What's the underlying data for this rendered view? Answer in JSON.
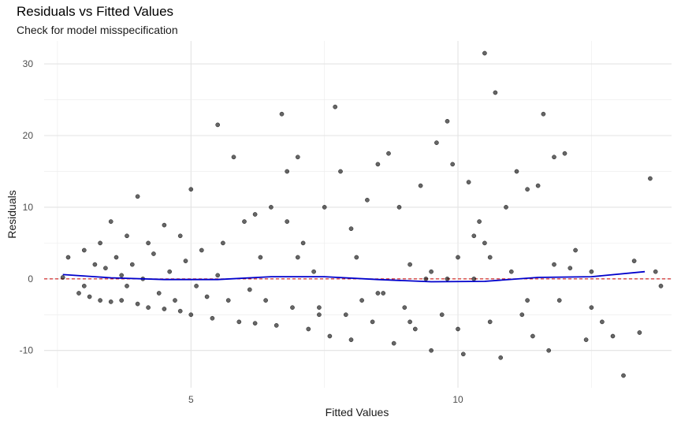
{
  "chart_data": {
    "type": "scatter",
    "title": "Residuals vs Fitted Values",
    "subtitle": "Check for model misspecification",
    "xlabel": "Fitted Values",
    "ylabel": "Residuals",
    "xlim": [
      2.25,
      14.0
    ],
    "ylim": [
      -15.2,
      33.2
    ],
    "x_ticks": [
      5,
      10
    ],
    "y_ticks": [
      -10,
      0,
      10,
      20,
      30
    ],
    "grid": true,
    "reference_line": {
      "y": 0,
      "color": "#cc0000",
      "style": "dashed"
    },
    "smooth_line": {
      "color": "#0000cc",
      "x": [
        2.6,
        3.5,
        4.5,
        5.5,
        6.5,
        7.5,
        8.5,
        9.5,
        10.5,
        11.5,
        12.5,
        13.5
      ],
      "y": [
        0.6,
        0.15,
        -0.1,
        -0.1,
        0.3,
        0.3,
        -0.1,
        -0.4,
        -0.35,
        0.2,
        0.3,
        1.0
      ]
    },
    "point_color": "#000000",
    "point_opacity": 0.6,
    "x": [
      2.6,
      2.7,
      2.9,
      3.0,
      3.0,
      3.1,
      3.2,
      3.3,
      3.3,
      3.4,
      3.5,
      3.5,
      3.6,
      3.7,
      3.7,
      3.8,
      3.8,
      3.9,
      4.0,
      4.0,
      4.1,
      4.2,
      4.2,
      4.3,
      4.4,
      4.5,
      4.5,
      4.6,
      4.7,
      4.8,
      4.8,
      4.9,
      5.0,
      5.0,
      5.1,
      5.2,
      5.3,
      5.4,
      5.5,
      5.6,
      5.7,
      5.8,
      5.9,
      6.0,
      6.1,
      6.2,
      6.3,
      6.4,
      6.5,
      6.6,
      6.7,
      6.8,
      6.9,
      7.0,
      7.1,
      7.2,
      7.3,
      7.4,
      7.5,
      7.6,
      7.7,
      7.8,
      7.9,
      8.0,
      8.1,
      8.2,
      8.3,
      8.4,
      8.5,
      8.6,
      8.7,
      8.8,
      8.9,
      9.0,
      9.1,
      9.2,
      9.3,
      9.4,
      9.5,
      9.6,
      9.7,
      9.8,
      9.9,
      10.0,
      10.1,
      10.2,
      10.3,
      10.4,
      10.5,
      10.6,
      10.7,
      10.8,
      10.9,
      11.0,
      11.1,
      11.2,
      11.3,
      11.4,
      11.5,
      11.6,
      11.7,
      11.8,
      11.9,
      12.0,
      12.2,
      12.4,
      12.5,
      12.7,
      12.9,
      13.1,
      13.3,
      13.4,
      13.6,
      13.7,
      13.8,
      5.5,
      7.4,
      7.0,
      8.0,
      8.5,
      9.5,
      10.0,
      10.5,
      10.6,
      11.8,
      12.5,
      9.8,
      10.3,
      11.3,
      6.8,
      6.2,
      9.1,
      12.1
    ],
    "y": [
      0.2,
      3.0,
      -2.0,
      -1.0,
      4.0,
      -2.5,
      2.0,
      -3.0,
      5.0,
      1.5,
      -3.2,
      8.0,
      3.0,
      -3.0,
      0.5,
      -1.0,
      6.0,
      2.0,
      -3.5,
      11.5,
      0.0,
      -4.0,
      5.0,
      3.5,
      -2.0,
      -4.2,
      7.5,
      1.0,
      -3.0,
      -4.5,
      6.0,
      2.5,
      -5.0,
      12.5,
      -1.0,
      4.0,
      -2.5,
      -5.5,
      21.5,
      5.0,
      -3.0,
      17.0,
      -6.0,
      8.0,
      -1.5,
      -6.2,
      3.0,
      -3.0,
      10.0,
      -6.5,
      23.0,
      15.0,
      -4.0,
      17.0,
      5.0,
      -7.0,
      1.0,
      -4.0,
      10.0,
      -8.0,
      24.0,
      15.0,
      -5.0,
      -8.5,
      3.0,
      -3.0,
      11.0,
      -6.0,
      16.0,
      -2.0,
      17.5,
      -9.0,
      10.0,
      -4.0,
      2.0,
      -7.0,
      13.0,
      0.0,
      -10.0,
      19.0,
      -5.0,
      22.0,
      16.0,
      3.0,
      -10.5,
      13.5,
      0.0,
      8.0,
      31.5,
      -6.0,
      26.0,
      -11.0,
      10.0,
      1.0,
      15.0,
      -5.0,
      12.5,
      -8.0,
      13.0,
      23.0,
      -10.0,
      17.0,
      -3.0,
      17.5,
      4.0,
      -8.5,
      1.0,
      -6.0,
      -8.0,
      -13.5,
      2.5,
      -7.5,
      14.0,
      1.0,
      -1.0,
      0.5,
      -5.0,
      3.0,
      7.0,
      -2.0,
      1.0,
      -7.0,
      5.0,
      3.0,
      2.0,
      -4.0,
      0.0,
      6.0,
      -3.0,
      8.0,
      9.0,
      -6.0,
      1.5
    ]
  }
}
